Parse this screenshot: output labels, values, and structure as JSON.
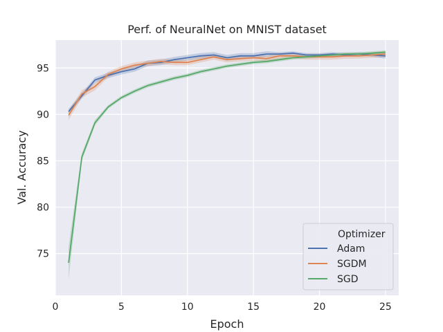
{
  "chart_data": {
    "type": "line",
    "title": "Perf. of NeuralNet on MNIST dataset",
    "xlabel": "Epoch",
    "ylabel": "Val. Accuracy",
    "xlim": [
      0,
      26
    ],
    "ylim": [
      70.5,
      98
    ],
    "xticks": [
      0,
      5,
      10,
      15,
      20,
      25
    ],
    "yticks": [
      75,
      80,
      85,
      90,
      95
    ],
    "grid": true,
    "legend": {
      "title": "Optimizer",
      "placement": "lower-right"
    },
    "x": [
      1,
      2,
      3,
      4,
      5,
      6,
      7,
      8,
      9,
      10,
      11,
      12,
      13,
      14,
      15,
      16,
      17,
      18,
      19,
      20,
      21,
      22,
      23,
      24,
      25
    ],
    "series": [
      {
        "name": "Adam",
        "color": "#4c72b0",
        "values": [
          90.3,
          92.0,
          93.7,
          94.2,
          94.6,
          94.9,
          95.5,
          95.6,
          95.9,
          96.1,
          96.3,
          96.4,
          96.1,
          96.3,
          96.3,
          96.5,
          96.5,
          96.6,
          96.4,
          96.4,
          96.5,
          96.4,
          96.5,
          96.4,
          96.3
        ],
        "band": [
          0.3,
          0.3,
          0.3,
          0.3,
          0.3,
          0.3,
          0.3,
          0.3,
          0.3,
          0.3,
          0.3,
          0.3,
          0.3,
          0.3,
          0.3,
          0.3,
          0.2,
          0.2,
          0.2,
          0.2,
          0.2,
          0.2,
          0.2,
          0.2,
          0.3
        ]
      },
      {
        "name": "SGDM",
        "color": "#dd8452",
        "values": [
          89.9,
          92.2,
          93.0,
          94.3,
          94.9,
          95.3,
          95.5,
          95.7,
          95.6,
          95.6,
          95.9,
          96.2,
          95.9,
          96.0,
          96.1,
          96.0,
          96.3,
          96.3,
          96.2,
          96.2,
          96.2,
          96.3,
          96.3,
          96.4,
          96.5
        ],
        "band": [
          0.5,
          0.4,
          0.4,
          0.3,
          0.3,
          0.3,
          0.3,
          0.3,
          0.3,
          0.3,
          0.3,
          0.3,
          0.3,
          0.3,
          0.3,
          0.3,
          0.3,
          0.3,
          0.3,
          0.3,
          0.3,
          0.3,
          0.3,
          0.3,
          0.3
        ]
      },
      {
        "name": "SGD",
        "color": "#55a868",
        "values": [
          74.0,
          85.4,
          89.1,
          90.8,
          91.8,
          92.5,
          93.1,
          93.5,
          93.9,
          94.2,
          94.6,
          94.9,
          95.2,
          95.4,
          95.6,
          95.7,
          95.9,
          96.1,
          96.2,
          96.3,
          96.4,
          96.5,
          96.5,
          96.6,
          96.7
        ],
        "band": [
          1.8,
          0.4,
          0.3,
          0.2,
          0.2,
          0.2,
          0.2,
          0.2,
          0.2,
          0.2,
          0.2,
          0.2,
          0.2,
          0.2,
          0.2,
          0.2,
          0.2,
          0.2,
          0.2,
          0.2,
          0.2,
          0.2,
          0.2,
          0.2,
          0.2
        ]
      }
    ]
  }
}
